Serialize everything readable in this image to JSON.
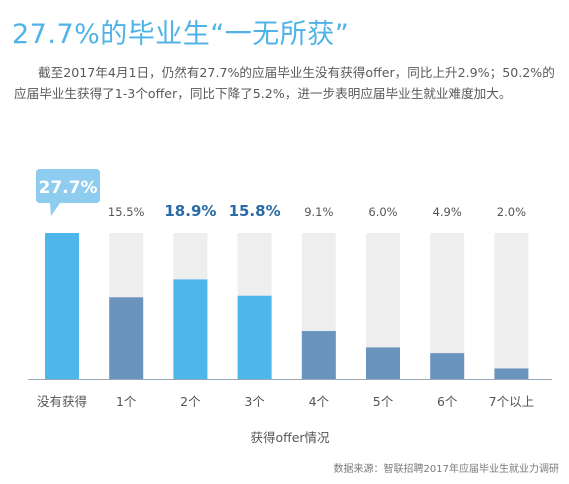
{
  "title": "27.7%的毕业生“一无所获”",
  "description": "截至2017年4月1日，仍然有27.7%的应届毕业生没有获得offer，同比上升2.9%；50.2%的应届毕业生获得了1-3个offer，同比下降了5.2%，进一步表明应届毕业生就业难度加大。",
  "source": "数据来源：智联招聘2017年应届毕业生就业力调研",
  "colors": {
    "highlight_bar": "#4FB6EA",
    "normal_bar": "#6A93BE",
    "track": "#EEEEEF",
    "highlight_label": "#2A6AA6",
    "normal_label": "#555555",
    "title": "#4FB3E8",
    "callout": "#8FCDF0"
  },
  "chart_data": {
    "type": "bar",
    "categories": [
      "没有获得",
      "1个",
      "2个",
      "3个",
      "4个",
      "5个",
      "6个",
      "7个以上"
    ],
    "values": [
      27.7,
      15.5,
      18.9,
      15.8,
      9.1,
      6.0,
      4.9,
      2.0
    ],
    "data_labels": [
      "27.7%",
      "15.5%",
      "18.9%",
      "15.8%",
      "9.1%",
      "6.0%",
      "4.9%",
      "2.0%"
    ],
    "highlighted": [
      true,
      false,
      true,
      true,
      false,
      false,
      false,
      false
    ],
    "callout_index": 0,
    "xlabel": "获得offer情况",
    "ylabel": "",
    "ylim": [
      0,
      27.7
    ],
    "grid": false,
    "legend": "none"
  }
}
